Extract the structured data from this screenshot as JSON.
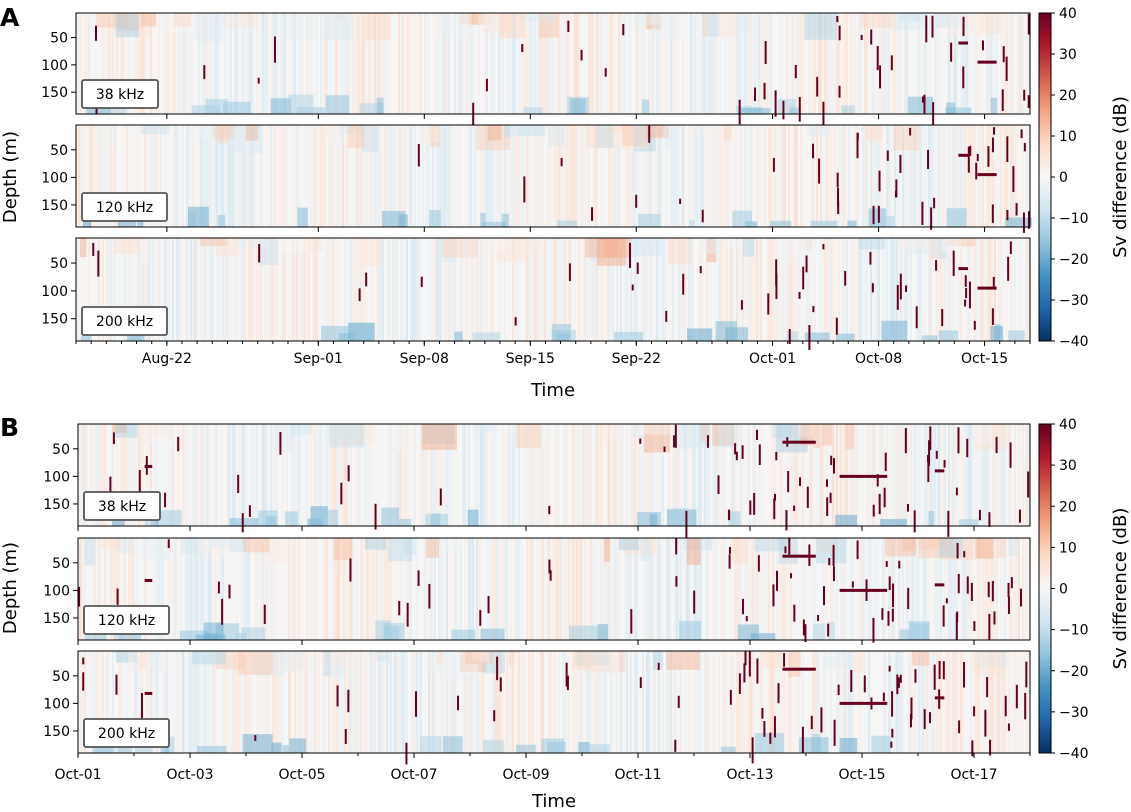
{
  "chart_data": [
    {
      "type": "heatmap",
      "panel": "A",
      "xlabel": "Time",
      "ylabel": "Depth (m)",
      "colorbar": {
        "label": "Sv difference (dB)",
        "range": [
          -40,
          40
        ],
        "ticks": [
          40,
          30,
          20,
          10,
          0,
          -10,
          -20,
          -30,
          -40
        ],
        "colormap": "RdBu_r"
      },
      "x_range": [
        "2023-08-16",
        "2023-10-18"
      ],
      "x_ticks": [
        {
          "date": "2023-08-22",
          "label": "Aug-22"
        },
        {
          "date": "2023-09-01",
          "label": "Sep-01"
        },
        {
          "date": "2023-09-08",
          "label": "Sep-08"
        },
        {
          "date": "2023-09-15",
          "label": "Sep-15"
        },
        {
          "date": "2023-09-22",
          "label": "Sep-22"
        },
        {
          "date": "2023-10-01",
          "label": "Oct-01"
        },
        {
          "date": "2023-10-08",
          "label": "Oct-08"
        },
        {
          "date": "2023-10-15",
          "label": "Oct-15"
        }
      ],
      "y_range": [
        190,
        5
      ],
      "y_ticks": [
        50,
        100,
        150
      ],
      "subpanels": [
        {
          "label": "38 kHz"
        },
        {
          "label": "120 kHz"
        },
        {
          "label": "200 kHz"
        }
      ]
    },
    {
      "type": "heatmap",
      "panel": "B",
      "xlabel": "Time",
      "ylabel": "Depth (m)",
      "colorbar": {
        "label": "Sv difference (dB)",
        "range": [
          -40,
          40
        ],
        "ticks": [
          40,
          30,
          20,
          10,
          0,
          -10,
          -20,
          -30,
          -40
        ],
        "colormap": "RdBu_r"
      },
      "x_range": [
        "2023-10-01",
        "2023-10-18"
      ],
      "x_ticks": [
        {
          "date": "2023-10-01",
          "label": "Oct-01"
        },
        {
          "date": "2023-10-03",
          "label": "Oct-03"
        },
        {
          "date": "2023-10-05",
          "label": "Oct-05"
        },
        {
          "date": "2023-10-07",
          "label": "Oct-07"
        },
        {
          "date": "2023-10-09",
          "label": "Oct-09"
        },
        {
          "date": "2023-10-11",
          "label": "Oct-11"
        },
        {
          "date": "2023-10-13",
          "label": "Oct-13"
        },
        {
          "date": "2023-10-15",
          "label": "Oct-15"
        },
        {
          "date": "2023-10-17",
          "label": "Oct-17"
        }
      ],
      "y_range": [
        190,
        5
      ],
      "y_ticks": [
        50,
        100,
        150
      ],
      "subpanels": [
        {
          "label": "38 kHz"
        },
        {
          "label": "120 kHz"
        },
        {
          "label": "200 kHz"
        }
      ]
    }
  ],
  "colors": {
    "scale": [
      "#053061",
      "#2166ac",
      "#4393c3",
      "#92c5de",
      "#d1e5f0",
      "#f7f7f7",
      "#fddbc7",
      "#f4a582",
      "#d6604d",
      "#b2182b",
      "#67001f"
    ],
    "frame": "#000000",
    "label_box_border": "#555555"
  }
}
